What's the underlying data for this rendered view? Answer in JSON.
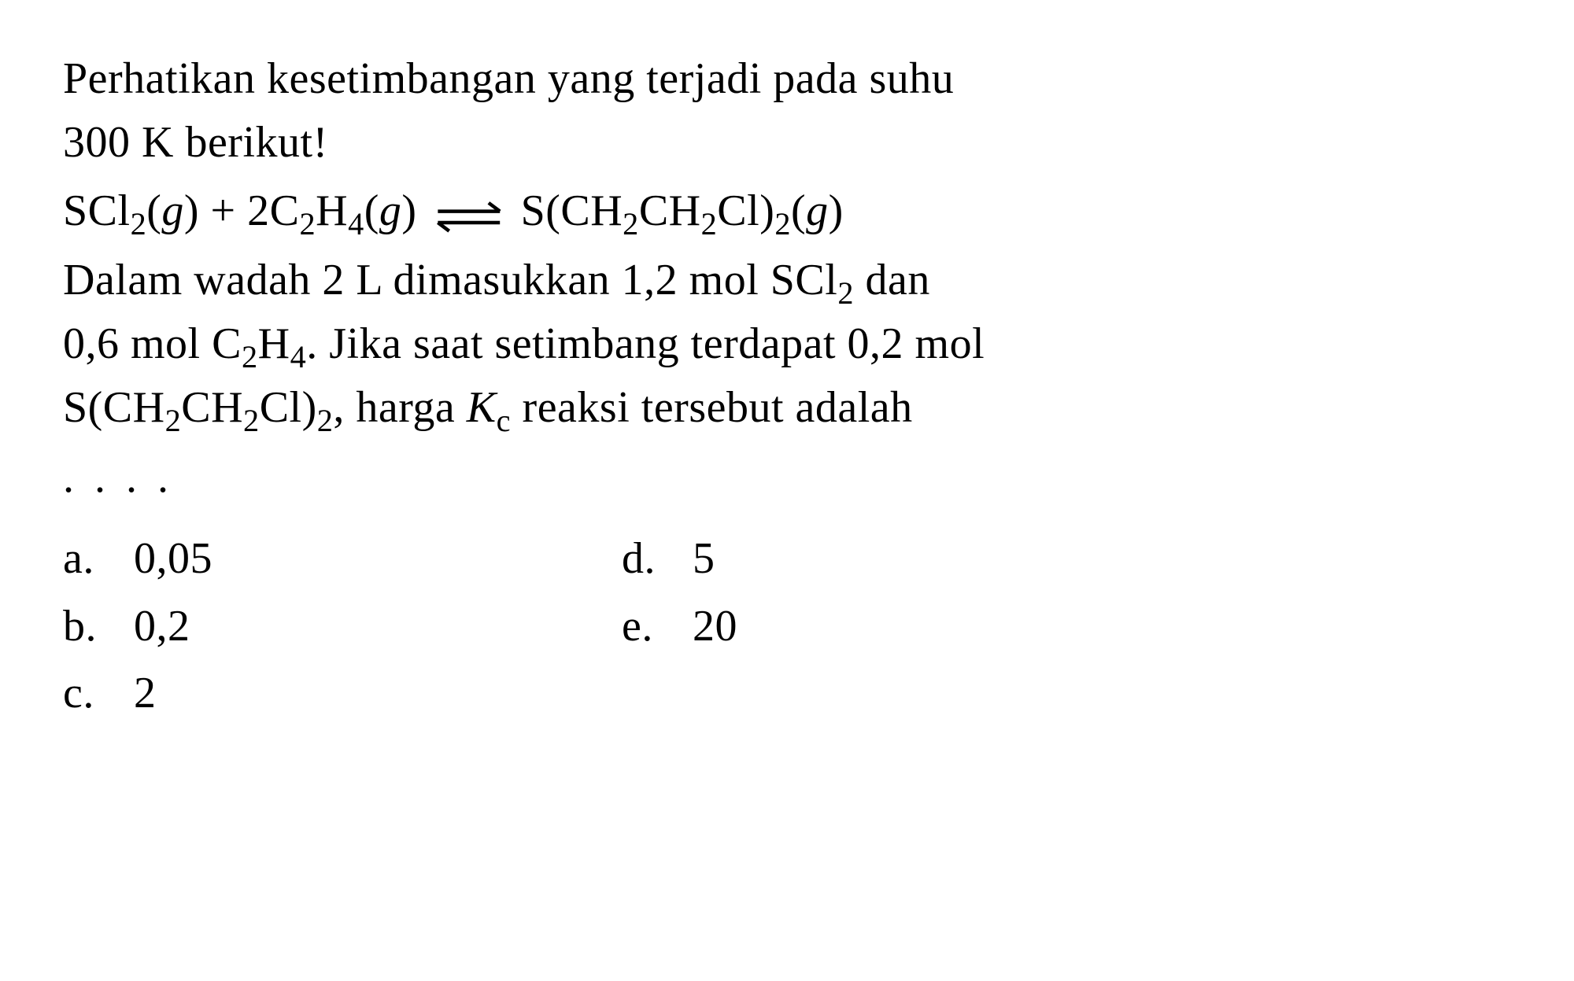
{
  "colors": {
    "text": "#000000",
    "background": "#ffffff"
  },
  "typography": {
    "font_family": "Times New Roman",
    "body_fontsize_pt": 42,
    "sub_scale": 0.72,
    "line_height": 1.45
  },
  "question": {
    "intro_line1": "Perhatikan kesetimbangan yang terjadi pada suhu",
    "intro_line2": "300 K berikut!",
    "equation": {
      "lhs_html": "SCl<sub>2</sub>(<i>g</i>) + 2C<sub>2</sub>H<sub>4</sub>(<i>g</i>)",
      "rhs_html": "S(CH<sub>2</sub>CH<sub>2</sub>Cl)<sub>2</sub>(<i>g</i>)",
      "arrow_type": "equilibrium"
    },
    "body_line1_html": "Dalam wadah 2 L dimasukkan 1,2 mol SCl<sub>2</sub> dan",
    "body_line2_html": "0,6 mol C<sub>2</sub>H<sub>4</sub>. Jika saat setimbang terdapat 0,2 mol",
    "body_line3_html": "S(CH<sub>2</sub>CH<sub>2</sub>Cl)<sub>2</sub>, harga <i>K</i><sub>c</sub> reaksi tersebut adalah",
    "dots": ". . . ."
  },
  "options": {
    "left": [
      {
        "letter": "a.",
        "text": "0,05"
      },
      {
        "letter": "b.",
        "text": "0,2"
      },
      {
        "letter": "c.",
        "text": "2"
      }
    ],
    "right": [
      {
        "letter": "d.",
        "text": "5"
      },
      {
        "letter": "e.",
        "text": "20"
      }
    ]
  }
}
